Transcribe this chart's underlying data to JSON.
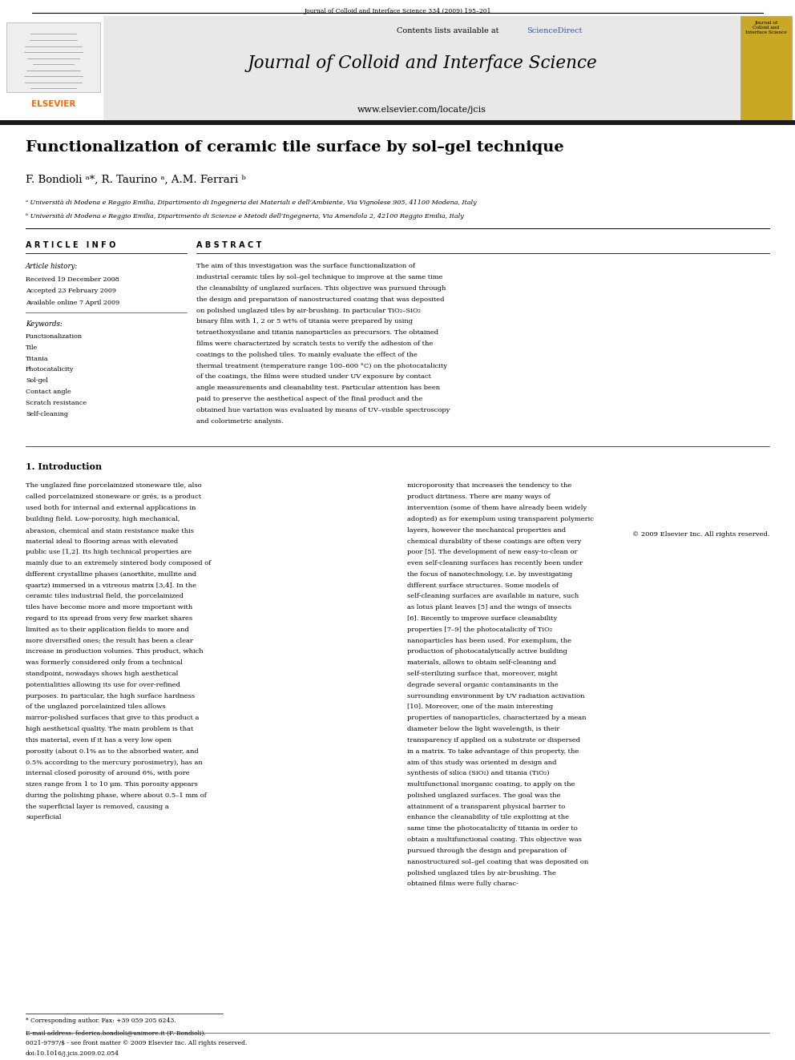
{
  "page_width": 9.92,
  "page_height": 13.23,
  "background_color": "#ffffff",
  "header_journal_text": "Journal of Colloid and Interface Science 334 (2009) 195–201",
  "elsevier_color": "#ff6600",
  "elsevier_text": "ELSEVIER",
  "journal_title": "Journal of Colloid and Interface Science",
  "journal_url": "www.elsevier.com/locate/jcis",
  "contents_text": "Contents lists available at ",
  "science_direct_text": "ScienceDirect",
  "science_direct_color": "#3355aa",
  "header_bg_color": "#e8e8e8",
  "thick_bar_color": "#1a1a1a",
  "paper_title": "Functionalization of ceramic tile surface by sol–gel technique",
  "authors": "F. Bondioli ᵃ*, R. Taurino ᵃ, A.M. Ferrari ᵇ",
  "affil_a": "ᵃ Università di Modena e Reggio Emilia, Dipartimento di Ingegneria dei Materiali e dell’Ambiente, Via Vignolese 905, 41100 Modena, Italy",
  "affil_b": "ᵇ Università di Modena e Reggio Emilia, Dipartimento di Scienze e Metodi dell’Ingegneria, Via Amendola 2, 42100 Reggio Emilia, Italy",
  "article_info_title": "A R T I C L E   I N F O",
  "abstract_title": "A B S T R A C T",
  "article_history_label": "Article history:",
  "received_text": "Received 19 December 2008",
  "accepted_text": "Accepted 23 February 2009",
  "available_text": "Available online 7 April 2009",
  "keywords_label": "Keywords:",
  "keywords": [
    "Functionalization",
    "Tile",
    "Titania",
    "Photocatalicity",
    "Sol-gel",
    "Contact angle",
    "Scratch resistance",
    "Self-cleaning"
  ],
  "abstract_text": "The aim of this investigation was the surface functionalization of industrial ceramic tiles by sol–gel technique to improve at the same time the cleanability of unglazed surfaces. This objective was pursued through the design and preparation of nanostructured coating that was deposited on polished unglazed tiles by air-brushing. In particular TiO₂–SiO₂ binary film with 1, 2 or 5 wt% of titania were prepared by using tetraethoxysilane and titania nanoparticles as precursors. The obtained films were characterized by scratch tests to verify the adhesion of the coatings to the polished tiles. To mainly evaluate the effect of the thermal treatment (temperature range 100–600 °C) on the photocatalicity of the coatings, the films were studied under UV exposure by contact angle measurements and cleanability test. Particular attention has been paid to preserve the aesthetical aspect of the final product and the obtained hue variation was evaluated by means of UV–visible spectroscopy and colorimetric analysis.",
  "copyright_text": "© 2009 Elsevier Inc. All rights reserved.",
  "intro_title": "1. Introduction",
  "intro_col1": "The unglazed fine porcelainized stoneware tile, also called porcelainized stoneware or grés, is a product used both for internal and external applications in building field. Low-porosity, high mechanical, abrasion, chemical and stain resistance make this material ideal to flooring areas with elevated public use [1,2]. Its high technical properties are mainly due to an extremely sintered body composed of different crystalline phases (anorthite, mullite and quartz) immersed in a vitreous matrix [3,4]. In the ceramic tiles industrial field, the porcelainized tiles have become more and more important with regard to its spread from very few market shares limited as to their application fields to more and more diversified ones; the result has been a clear increase in production volumes. This product, which was formerly considered only from a technical standpoint, nowadays shows high aesthetical potentialities allowing its use for over-refined purposes. In particular, the high surface hardness of the unglazed porcelainized tiles allows mirror-polished surfaces that give to this product a high aesthetical quality. The main problem is that this material, even if it has a very low open porosity (about 0.1% as to the absorbed water, and 0.5% according to the mercury porosimetry), has an internal closed porosity of around 6%, with pore sizes range from 1 to 10 μm. This porosity appears during the polishing phase, where about 0.5–1 mm of the superficial layer is removed, causing a superficial",
  "intro_col2": "microporosity that increases the tendency to the product dirtiness. There are many ways of intervention (some of them have already been widely adopted) as for exemplum using transparent polymeric layers, however the mechanical properties and chemical durability of these coatings are often very poor [5].\n    The development of new easy-to-clean or even self-cleaning surfaces has recently been under the focus of nanotechnology, i.e. by investigating different surface structures. Some models of self-cleaning surfaces are available in nature, such as lotus plant leaves [5] and the wings of insects [6]. Recently to improve surface cleanability properties [7–9] the photocatalicity of TiO₂ nanoparticles has been used. For exemplum, the production of photocatalytically active building materials, allows to obtain self-cleaning and self-sterilizing surface that, moreover, might degrade several organic contaminants in the surrounding environment by UV radiation activation [10].\n    Moreover, one of the main interesting properties of nanoparticles, characterized by a mean diameter below the light wavelength, is their transparency if applied on a substrate or dispersed in a matrix. To take advantage of this property, the aim of this study was oriented in design and synthesis of silica (SiO₂) and titania (TiO₂) multifunctional inorganic coating, to apply on the polished unglazed surfaces. The goal was the attainment of a transparent physical barrier to enhance the cleanability of tile exploiting at the same time the photocatalicity of titania in order to obtain a multifunctional coating. This objective was pursued through the design and preparation of nanostructured sol–gel coating that was deposited on polished unglazed tiles by air-brushing. The obtained films were fully charac-",
  "footnote_star": "* Corresponding author. Fax: +39 059 205 6243.",
  "footnote_email": "E-mail address: federica.bondioli@unimore.it (F. Bondioli).",
  "footer_text1": "0021-9797/$ - see front matter © 2009 Elsevier Inc. All rights reserved.",
  "footer_text2": "doi:10.1016/j.jcis.2009.02.054"
}
